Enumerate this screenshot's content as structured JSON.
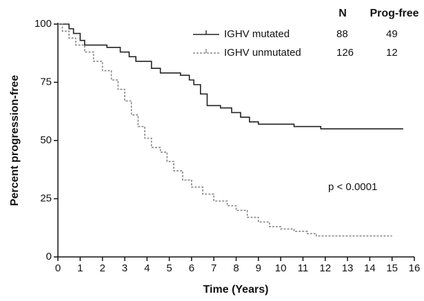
{
  "chart_data": {
    "type": "step",
    "y_label": "Percent progression-free",
    "x_label": "Time (Years)",
    "xlim": [
      0,
      16
    ],
    "xticks": [
      0,
      1,
      2,
      3,
      4,
      5,
      6,
      7,
      8,
      9,
      10,
      11,
      12,
      13,
      14,
      15,
      16
    ],
    "ylim": [
      0,
      100
    ],
    "yticks": [
      0,
      25,
      50,
      75,
      100
    ],
    "legend_columns": [
      "N",
      "Prog-free"
    ],
    "annotations": [
      "p < 0.0001"
    ],
    "series": [
      {
        "name": "IGHV mutated",
        "color": "#222222",
        "dash": false,
        "n": 88,
        "prog_free": 49,
        "x": [
          0,
          0.5,
          0.7,
          1.0,
          1.2,
          2.2,
          2.8,
          3.2,
          3.5,
          4.2,
          4.6,
          5.5,
          5.9,
          6.1,
          6.4,
          6.7,
          7.3,
          7.8,
          8.2,
          8.6,
          9.0,
          10.6,
          11.8,
          15.5
        ],
        "values": [
          100,
          98,
          96,
          93,
          91,
          90,
          88,
          86,
          84,
          81,
          79,
          78,
          76,
          74,
          70,
          65,
          64,
          62,
          60,
          58,
          57,
          56,
          55,
          55
        ]
      },
      {
        "name": "IGHV unmutated",
        "color": "#888888",
        "dash": true,
        "n": 126,
        "prog_free": 12,
        "x": [
          0,
          0.2,
          0.5,
          0.8,
          1.2,
          1.6,
          2.0,
          2.4,
          2.7,
          3.0,
          3.3,
          3.6,
          3.9,
          4.2,
          4.6,
          4.9,
          5.2,
          5.6,
          6.0,
          6.5,
          7.0,
          7.6,
          8.0,
          8.5,
          9.0,
          9.5,
          10.0,
          10.6,
          11.2,
          11.6,
          15.0
        ],
        "values": [
          100,
          97,
          94,
          91,
          88,
          84,
          80,
          76,
          72,
          67,
          61,
          56,
          51,
          47,
          45,
          41,
          37,
          33,
          30,
          27,
          24,
          22,
          20,
          17,
          15,
          13,
          12,
          11,
          10,
          9,
          9
        ]
      }
    ]
  }
}
